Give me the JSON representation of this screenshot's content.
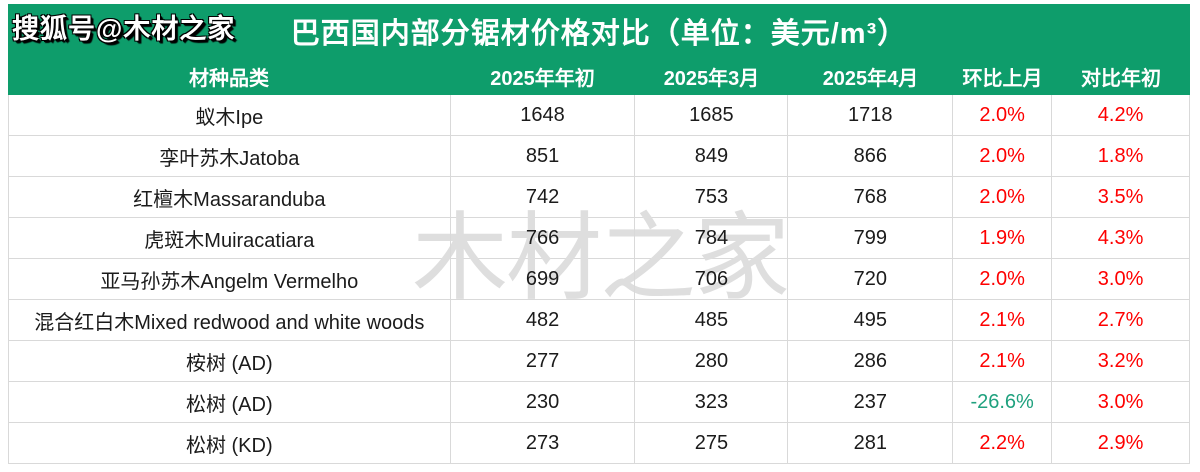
{
  "badge": "搜狐号@木材之家",
  "watermark": "木材之家",
  "colors": {
    "header_green": "#0e9d6b",
    "rise_red": "#fe0000",
    "fall_green": "#1fa17e",
    "border_gray": "#d9d9d9",
    "watermark_gray": "#dedede"
  },
  "chart_data": {
    "type": "table",
    "title": "巴西国内部分锯材价格对比（单位：美元/m³）",
    "columns": [
      "材种品类",
      "2025年年初",
      "2025年3月",
      "2025年4月",
      "环比上月",
      "对比年初"
    ],
    "rows": [
      [
        "蚁木Ipe",
        "1648",
        "1685",
        "1718",
        "2.0%",
        "4.2%"
      ],
      [
        "孪叶苏木Jatoba",
        "851",
        "849",
        "866",
        "2.0%",
        "1.8%"
      ],
      [
        "红檀木Massaranduba",
        "742",
        "753",
        "768",
        "2.0%",
        "3.5%"
      ],
      [
        "虎斑木Muiracatiara",
        "766",
        "784",
        "799",
        "1.9%",
        "4.3%"
      ],
      [
        "亚马孙苏木Angelm Vermelho",
        "699",
        "706",
        "720",
        "2.0%",
        "3.0%"
      ],
      [
        "混合红白木Mixed redwood and white woods",
        "482",
        "485",
        "495",
        "2.1%",
        "2.7%"
      ],
      [
        "桉树 (AD)",
        "277",
        "280",
        "286",
        "2.1%",
        "3.2%"
      ],
      [
        "松树 (AD)",
        "230",
        "323",
        "237",
        "-26.6%",
        "3.0%"
      ],
      [
        "松树 (KD)",
        "273",
        "275",
        "281",
        "2.2%",
        "2.9%"
      ]
    ]
  }
}
